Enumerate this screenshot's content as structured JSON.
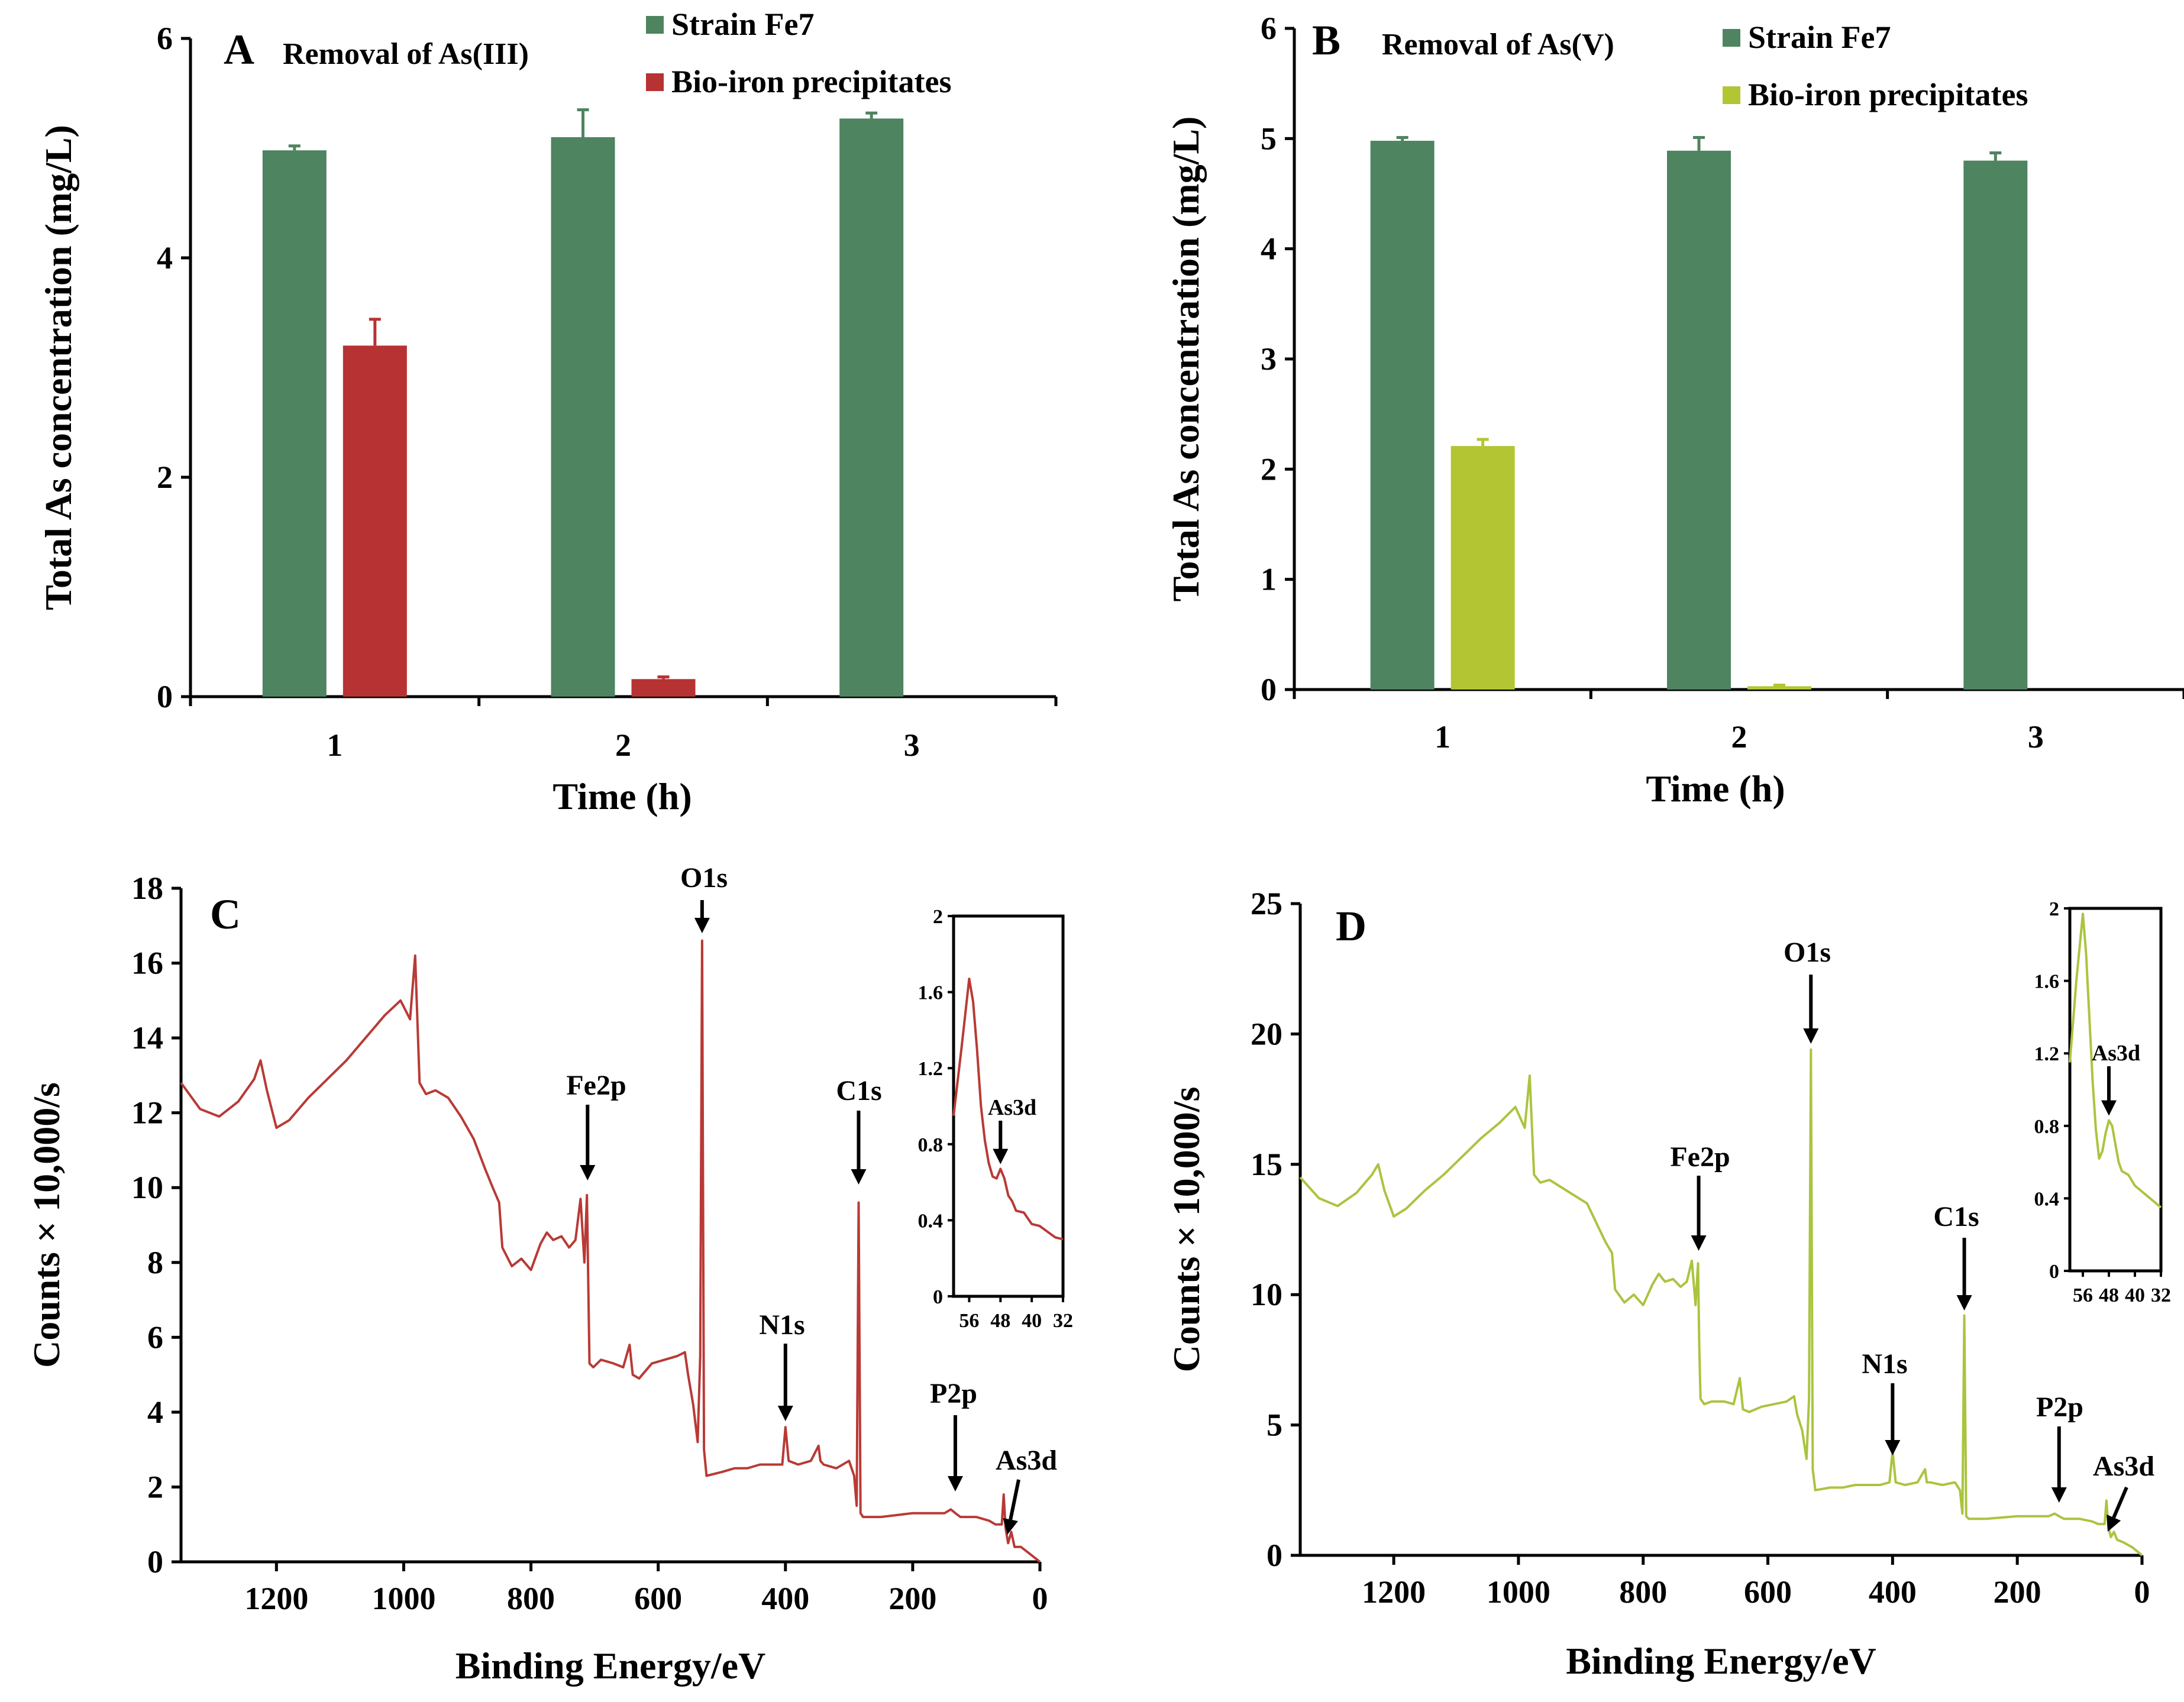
{
  "colors": {
    "strain": "#4e8460",
    "bio_a": "#b73232",
    "bio_b": "#b3c533",
    "spec_c": "#b83a36",
    "spec_d": "#aac43f"
  },
  "chart_data": [
    {
      "panel": "A",
      "type": "bar",
      "title": "Removal of As(III)",
      "xlabel": "Time (h)",
      "ylabel": "Total As concentration (mg/L)",
      "ylim": [
        0,
        6
      ],
      "yticks": [
        "0",
        "2",
        "4",
        "6"
      ],
      "categories": [
        "1",
        "2",
        "3"
      ],
      "legend_position": "top-right",
      "series": [
        {
          "name": "Strain Fe7",
          "color": "strain",
          "values": [
            4.98,
            5.1,
            5.27
          ],
          "errors": [
            0.04,
            0.25,
            0.05
          ]
        },
        {
          "name": "Bio-iron precipitates",
          "color": "bio_a",
          "values": [
            3.2,
            0.16,
            0.0
          ],
          "errors": [
            0.24,
            0.02,
            0.0
          ]
        }
      ]
    },
    {
      "panel": "B",
      "type": "bar",
      "title": "Removal of As(V)",
      "xlabel": "Time (h)",
      "ylabel": "Total As concentration (mg/L)",
      "ylim": [
        0,
        6
      ],
      "yticks": [
        "0",
        "1",
        "2",
        "3",
        "4",
        "5",
        "6"
      ],
      "categories": [
        "1",
        "2",
        "3"
      ],
      "legend_position": "top-right",
      "series": [
        {
          "name": "Strain Fe7",
          "color": "strain",
          "values": [
            4.98,
            4.89,
            4.8
          ],
          "errors": [
            0.03,
            0.12,
            0.07
          ]
        },
        {
          "name": "Bio-iron precipitates",
          "color": "bio_b",
          "values": [
            2.21,
            0.03,
            0.0
          ],
          "errors": [
            0.06,
            0.01,
            0.0
          ]
        }
      ]
    },
    {
      "panel": "C",
      "type": "line",
      "xlabel": "Binding Energy/eV",
      "ylabel": "Counts × 10,000/s",
      "xlim": [
        1350,
        0
      ],
      "ylim": [
        0,
        18
      ],
      "xticks": [
        "1200",
        "1000",
        "800",
        "600",
        "400",
        "200",
        "0"
      ],
      "yticks": [
        "0",
        "2",
        "4",
        "6",
        "8",
        "10",
        "12",
        "14",
        "16",
        "18"
      ],
      "peaks": [
        {
          "label": "O1s",
          "x": 531,
          "y": 16.6
        },
        {
          "label": "Fe2p",
          "x": 711,
          "y": 9.7
        },
        {
          "label": "C1s",
          "x": 285,
          "y": 9.6
        },
        {
          "label": "N1s",
          "x": 400,
          "y": 3.6
        },
        {
          "label": "P2p",
          "x": 133,
          "y": 1.4
        },
        {
          "label": "As3d",
          "x": 45,
          "y": 0.8
        }
      ],
      "series": [
        {
          "name": "spectrum",
          "color": "spec_c",
          "x": [
            1350,
            1320,
            1290,
            1260,
            1235,
            1225,
            1215,
            1200,
            1180,
            1150,
            1120,
            1090,
            1060,
            1030,
            1005,
            990,
            982,
            975,
            965,
            950,
            930,
            910,
            890,
            872,
            860,
            850,
            845,
            830,
            815,
            800,
            785,
            775,
            765,
            752,
            740,
            730,
            722,
            716,
            712,
            710,
            708,
            702,
            690,
            670,
            655,
            645,
            640,
            630,
            610,
            590,
            570,
            558,
            553,
            545,
            538,
            534,
            531,
            528,
            524,
            500,
            480,
            460,
            440,
            420,
            405,
            400,
            395,
            380,
            360,
            348,
            345,
            340,
            320,
            300,
            292,
            288,
            285,
            282,
            278,
            250,
            200,
            150,
            140,
            133,
            125,
            100,
            80,
            70,
            60,
            57,
            54,
            50,
            45,
            40,
            30,
            15,
            0
          ],
          "y": [
            12.8,
            12.1,
            11.9,
            12.3,
            12.9,
            13.4,
            12.6,
            11.6,
            11.8,
            12.4,
            12.9,
            13.4,
            14.0,
            14.6,
            15.0,
            14.5,
            16.2,
            12.8,
            12.5,
            12.6,
            12.4,
            11.9,
            11.3,
            10.5,
            10.0,
            9.6,
            8.4,
            7.9,
            8.1,
            7.8,
            8.5,
            8.8,
            8.6,
            8.7,
            8.4,
            8.6,
            9.7,
            8.0,
            9.8,
            7.5,
            5.3,
            5.2,
            5.4,
            5.3,
            5.2,
            5.8,
            5.0,
            4.9,
            5.3,
            5.4,
            5.5,
            5.6,
            5.0,
            4.2,
            3.2,
            5.5,
            16.6,
            3.0,
            2.3,
            2.4,
            2.5,
            2.5,
            2.6,
            2.6,
            2.6,
            3.6,
            2.7,
            2.6,
            2.7,
            3.1,
            2.7,
            2.6,
            2.5,
            2.7,
            2.3,
            1.5,
            9.6,
            1.3,
            1.2,
            1.2,
            1.3,
            1.3,
            1.4,
            1.3,
            1.2,
            1.2,
            1.1,
            1.0,
            1.0,
            1.8,
            0.9,
            0.5,
            0.8,
            0.4,
            0.4,
            0.2,
            0.0
          ]
        }
      ],
      "inset": {
        "xlim": [
          60,
          32
        ],
        "ylim": [
          0,
          2
        ],
        "xticks": [
          "56",
          "48",
          "40",
          "32"
        ],
        "yticks": [
          "0",
          "0.4",
          "0.8",
          "1.2",
          "1.6",
          "2"
        ],
        "annotation": "As3d",
        "x": [
          60,
          58,
          56,
          55,
          54,
          53,
          52,
          51,
          50,
          49,
          48,
          47,
          46,
          45,
          44,
          42,
          40,
          38,
          36,
          34,
          32
        ],
        "y": [
          0.95,
          1.3,
          1.67,
          1.55,
          1.3,
          1.0,
          0.82,
          0.7,
          0.63,
          0.62,
          0.67,
          0.62,
          0.53,
          0.5,
          0.45,
          0.44,
          0.38,
          0.37,
          0.34,
          0.31,
          0.3
        ]
      }
    },
    {
      "panel": "D",
      "type": "line",
      "xlabel": "Binding Energy/eV",
      "ylabel": "Counts × 10,000/s",
      "xlim": [
        1350,
        0
      ],
      "ylim": [
        0,
        25
      ],
      "xticks": [
        "1200",
        "1000",
        "800",
        "600",
        "400",
        "200",
        "0"
      ],
      "yticks": [
        "0",
        "5",
        "10",
        "15",
        "20",
        "25"
      ],
      "peaks": [
        {
          "label": "O1s",
          "x": 531,
          "y": 19.4
        },
        {
          "label": "Fe2p",
          "x": 711,
          "y": 11.2
        },
        {
          "label": "C1s",
          "x": 285,
          "y": 9.2
        },
        {
          "label": "N1s",
          "x": 400,
          "y": 4.0
        },
        {
          "label": "P2p",
          "x": 133,
          "y": 1.6
        },
        {
          "label": "As3d",
          "x": 45,
          "y": 0.9
        }
      ],
      "series": [
        {
          "name": "spectrum",
          "color": "spec_d",
          "x": [
            1350,
            1320,
            1290,
            1260,
            1235,
            1225,
            1215,
            1200,
            1180,
            1150,
            1120,
            1090,
            1060,
            1030,
            1005,
            990,
            982,
            975,
            965,
            950,
            930,
            910,
            890,
            872,
            860,
            850,
            845,
            830,
            815,
            800,
            785,
            775,
            765,
            752,
            740,
            730,
            722,
            716,
            712,
            710,
            708,
            702,
            690,
            670,
            655,
            645,
            640,
            630,
            610,
            590,
            570,
            558,
            553,
            545,
            538,
            534,
            531,
            528,
            524,
            500,
            480,
            460,
            440,
            420,
            405,
            400,
            395,
            380,
            360,
            348,
            345,
            340,
            320,
            300,
            292,
            288,
            285,
            282,
            278,
            250,
            200,
            150,
            140,
            133,
            125,
            100,
            80,
            70,
            60,
            57,
            54,
            50,
            45,
            40,
            30,
            15,
            0
          ],
          "y": [
            14.5,
            13.7,
            13.4,
            13.9,
            14.6,
            15.0,
            14.0,
            13.0,
            13.3,
            14.0,
            14.6,
            15.3,
            16.0,
            16.6,
            17.2,
            16.4,
            18.4,
            14.6,
            14.3,
            14.4,
            14.1,
            13.8,
            13.5,
            12.6,
            12.0,
            11.6,
            10.2,
            9.7,
            10.0,
            9.6,
            10.4,
            10.8,
            10.5,
            10.6,
            10.3,
            10.5,
            11.3,
            9.6,
            11.2,
            8.0,
            6.0,
            5.8,
            5.9,
            5.9,
            5.8,
            6.8,
            5.6,
            5.5,
            5.7,
            5.8,
            5.9,
            6.1,
            5.4,
            4.8,
            3.7,
            6.0,
            19.4,
            3.3,
            2.5,
            2.6,
            2.6,
            2.7,
            2.7,
            2.7,
            2.8,
            4.0,
            2.8,
            2.7,
            2.8,
            3.3,
            2.8,
            2.8,
            2.7,
            2.8,
            2.5,
            1.6,
            9.2,
            1.5,
            1.4,
            1.4,
            1.5,
            1.5,
            1.6,
            1.5,
            1.4,
            1.4,
            1.3,
            1.2,
            1.2,
            2.1,
            1.1,
            0.7,
            0.9,
            0.6,
            0.5,
            0.3,
            0.0
          ]
        }
      ],
      "inset": {
        "xlim": [
          60,
          32
        ],
        "ylim": [
          0,
          2
        ],
        "xticks": [
          "56",
          "48",
          "40",
          "32"
        ],
        "yticks": [
          "0",
          "0.4",
          "0.8",
          "1.2",
          "1.6",
          "2"
        ],
        "annotation": "As3d",
        "x": [
          60,
          58,
          56,
          55,
          54,
          53,
          52,
          51,
          50,
          49,
          48,
          47,
          46,
          45,
          44,
          42,
          40,
          38,
          36,
          34,
          32
        ],
        "y": [
          1.15,
          1.6,
          1.97,
          1.75,
          1.4,
          1.05,
          0.78,
          0.62,
          0.66,
          0.76,
          0.83,
          0.8,
          0.7,
          0.6,
          0.55,
          0.53,
          0.47,
          0.44,
          0.41,
          0.38,
          0.35
        ]
      }
    }
  ]
}
